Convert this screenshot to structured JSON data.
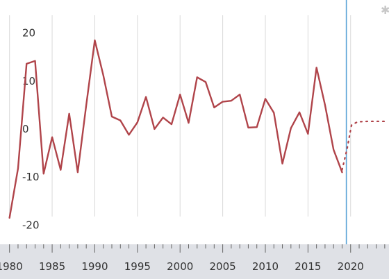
{
  "chart_data": {
    "type": "line",
    "grid": "vertical",
    "yticks": [
      20,
      10,
      0,
      -10,
      -20
    ],
    "xticks": [
      1980,
      1985,
      1990,
      1995,
      2000,
      2005,
      2010,
      2015,
      2020
    ],
    "ylim": [
      -23,
      24
    ],
    "xlim": [
      1979.7,
      2024.5
    ],
    "current_year_marker": 2019.5,
    "series": [
      {
        "style": "solid",
        "x": [
          1980,
          1981,
          1982,
          1983,
          1984,
          1985,
          1986,
          1987,
          1988,
          1989,
          1990,
          1991,
          1992,
          1993,
          1994,
          1995,
          1996,
          1997,
          1998,
          1999,
          2000,
          2001,
          2002,
          2003,
          2004,
          2005,
          2006,
          2007,
          2008,
          2009,
          2010,
          2011,
          2012,
          2013,
          2014,
          2015,
          2016,
          2017,
          2018,
          2019
        ],
        "values": [
          -18.5,
          -8.2,
          13.6,
          14.2,
          -9.3,
          -1.7,
          -8.5,
          3.2,
          -9,
          5,
          18.5,
          11.2,
          2.6,
          1.8,
          -1.2,
          1.4,
          6.7,
          0,
          2.4,
          1,
          7.2,
          1.3,
          10.8,
          9.8,
          4.5,
          5.7,
          5.9,
          7.2,
          0.3,
          0.4,
          6.3,
          3.4,
          -7.2,
          0.2,
          3.5,
          -1,
          12.8,
          5,
          -4.3,
          -9
        ]
      },
      {
        "style": "dotted",
        "x": [
          2019,
          2019.6,
          2020.1,
          2020.8,
          2022,
          2024
        ],
        "values": [
          -8.5,
          -4,
          0.8,
          1.5,
          1.6,
          1.6
        ]
      }
    ]
  }
}
